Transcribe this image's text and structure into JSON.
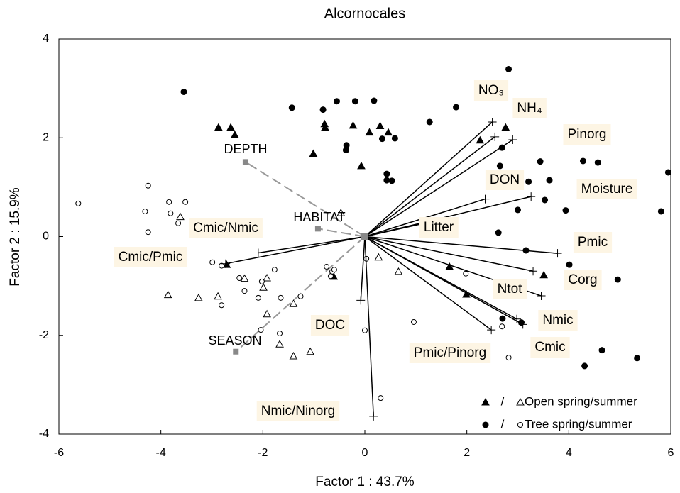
{
  "chart_data": {
    "type": "biplot",
    "title": "Alcornocales",
    "x_label": "Factor 1 : 43.7%",
    "y_label": "Factor 2 : 15.9%",
    "xlim": [
      -6,
      6
    ],
    "xticks": [
      -6,
      -4,
      -2,
      0,
      2,
      4,
      6
    ],
    "ylim": [
      -4,
      4
    ],
    "yticks": [
      -4,
      -2,
      0,
      2,
      4
    ],
    "legend_position": "lower right",
    "legend_separator": "/",
    "series": [
      {
        "name": "Open spring/summer",
        "marker": "triangle",
        "color": "#000",
        "groups": [
          {
            "fill": "filled",
            "x": [
              -2.87,
              -2.63,
              -2.55,
              -1.01,
              -0.79,
              -0.78,
              -0.23,
              0.09,
              0.3,
              0.46,
              -0.07,
              2.26,
              2.76,
              1.66,
              1.99,
              3.51,
              -0.61,
              -2.71
            ],
            "y": [
              2.21,
              2.21,
              2.06,
              1.68,
              2.28,
              2.21,
              2.25,
              2.11,
              2.24,
              2.11,
              1.43,
              1.95,
              2.21,
              -0.61,
              -1.17,
              -0.78,
              -0.81,
              -0.57
            ]
          },
          {
            "fill": "hollow",
            "x": [
              -3.62,
              -0.47,
              -3.86,
              -3.26,
              -2.88,
              -2.36,
              -1.99,
              -1.92,
              -1.92,
              -1.4,
              -1.67,
              -1.4,
              -1.07,
              0.27,
              0.66
            ],
            "y": [
              0.4,
              0.48,
              -1.18,
              -1.24,
              -1.21,
              -0.85,
              -1.03,
              -0.84,
              -1.57,
              -1.36,
              -2.18,
              -2.42,
              -2.33,
              -0.42,
              -0.71
            ]
          }
        ]
      },
      {
        "name": "Tree spring/summer",
        "marker": "circle",
        "color": "#000",
        "groups": [
          {
            "fill": "filled",
            "x": [
              -3.55,
              -1.43,
              -0.82,
              -0.55,
              -0.19,
              0.18,
              -0.36,
              -0.37,
              0.34,
              0.59,
              0.43,
              0.43,
              0.53,
              1.27,
              1.79,
              2.82,
              2.65,
              2.69,
              3.21,
              3.62,
              3.53,
              3.44,
              3.94,
              4.28,
              4.57,
              5.95,
              5.81,
              2.62,
              3.16,
              4.01,
              4.96,
              4.65,
              5.34,
              4.31,
              3.07,
              2.7,
              3.0
            ],
            "y": [
              2.93,
              2.61,
              2.57,
              2.74,
              2.74,
              2.75,
              1.85,
              1.75,
              1.98,
              1.99,
              1.27,
              1.14,
              1.13,
              2.32,
              2.62,
              3.39,
              1.43,
              1.8,
              1.11,
              1.14,
              0.74,
              1.52,
              0.53,
              1.53,
              1.5,
              1.3,
              0.51,
              0.08,
              -0.28,
              -0.57,
              -0.87,
              -2.3,
              -2.46,
              -2.62,
              -1.74,
              -1.66,
              0.54
            ]
          },
          {
            "fill": "hollow",
            "x": [
              -5.62,
              -4.25,
              -3.84,
              -4.31,
              -4.25,
              -3.81,
              -3.66,
              -3.52,
              -2.99,
              -2.81,
              -2.46,
              -2.36,
              -2.81,
              -2.02,
              -1.77,
              -2.09,
              -1.65,
              -2.04,
              -1.67,
              -1.26,
              -0.75,
              -0.64,
              -0.6,
              -0.67,
              0.03,
              0.0,
              0.96,
              1.98,
              2.69,
              2.82,
              0.31
            ],
            "y": [
              0.67,
              1.03,
              0.7,
              0.51,
              0.09,
              0.47,
              0.27,
              0.7,
              -0.52,
              -0.59,
              -0.84,
              -1.1,
              -1.39,
              -0.91,
              -0.67,
              -1.24,
              -1.24,
              -1.89,
              -1.96,
              -1.21,
              -0.61,
              -0.71,
              -0.67,
              -0.8,
              -0.45,
              -1.9,
              -1.73,
              -0.75,
              -1.82,
              -2.45,
              -3.27
            ]
          }
        ]
      }
    ],
    "vectors": [
      {
        "label": "NO₃",
        "x": 2.5,
        "y": 2.32
      },
      {
        "label": "NH₄",
        "x": 2.55,
        "y": 2.02
      },
      {
        "label": "Pinorg",
        "x": 2.9,
        "y": 1.96
      },
      {
        "label": "DON",
        "x": 2.36,
        "y": 0.76
      },
      {
        "label": "Moisture",
        "x": 3.26,
        "y": 0.81
      },
      {
        "label": "Litter",
        "x": 1.3,
        "y": 0.3
      },
      {
        "label": "Pmic",
        "x": 3.78,
        "y": -0.34
      },
      {
        "label": "Corg",
        "x": 3.3,
        "y": -0.7
      },
      {
        "label": "Ntot",
        "x": 3.46,
        "y": -1.2
      },
      {
        "label": "Nmic",
        "x": 2.98,
        "y": -1.67
      },
      {
        "label": "Cmic",
        "x": 3.1,
        "y": -1.78
      },
      {
        "label": "Pmic/Pinorg",
        "x": 2.48,
        "y": -1.89
      },
      {
        "label": "Nmic/Ninorg",
        "x": 0.17,
        "y": -3.64
      },
      {
        "label": "DOC",
        "x": -0.08,
        "y": -1.29
      },
      {
        "label": "Cmic/Pmic",
        "x": -2.73,
        "y": -0.55
      },
      {
        "label": "Cmic/Nmic",
        "x": -2.09,
        "y": -0.33
      }
    ],
    "supplementary": [
      {
        "label": "DEPTH",
        "x": -2.34,
        "y": 1.51
      },
      {
        "label": "HABITAT",
        "x": -0.92,
        "y": 0.16
      },
      {
        "label": "SEASON",
        "x": -2.53,
        "y": -2.33
      }
    ]
  }
}
